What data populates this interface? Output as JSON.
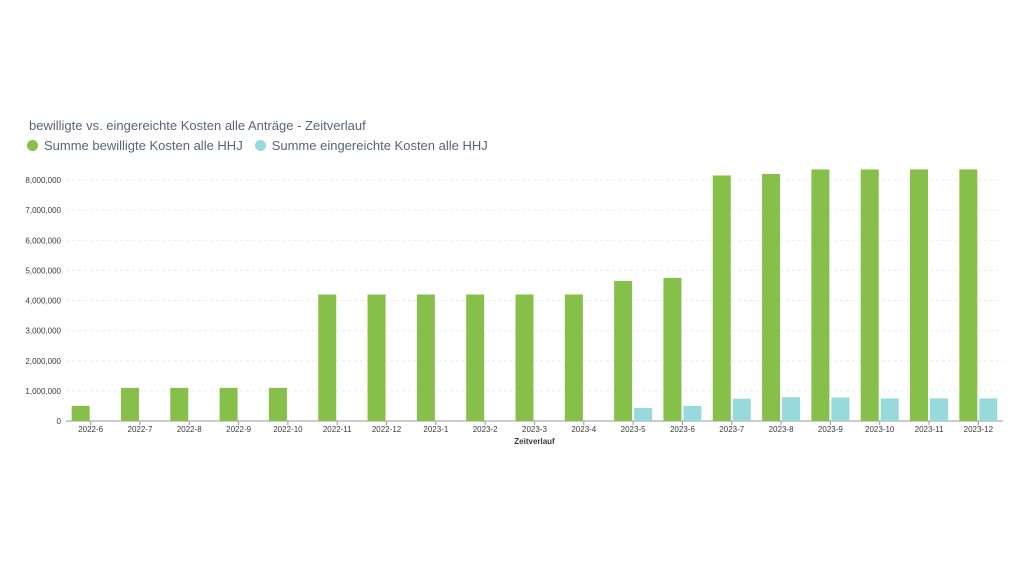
{
  "colors": {
    "series_approved": "#86bf4a",
    "series_submitted": "#98d9dc",
    "grid": "#ececec",
    "axis": "#999999"
  },
  "chart_data": {
    "type": "bar",
    "title": "bewilligte vs. eingereichte Kosten alle Anträge - Zeitverlauf",
    "xlabel": "Zeitverlauf",
    "ylabel": "",
    "ylim": [
      0,
      8000000
    ],
    "yticks": [
      "0",
      "1,000,000",
      "2,000,000",
      "3,000,000",
      "4,000,000",
      "5,000,000",
      "6,000,000",
      "7,000,000",
      "8,000,000"
    ],
    "ytick_values": [
      0,
      1000000,
      2000000,
      3000000,
      4000000,
      5000000,
      6000000,
      7000000,
      8000000
    ],
    "legend_position": "top-left",
    "categories": [
      "2022-6",
      "2022-7",
      "2022-8",
      "2022-9",
      "2022-10",
      "2022-11",
      "2022-12",
      "2023-1",
      "2023-2",
      "2023-3",
      "2023-4",
      "2023-5",
      "2023-6",
      "2023-7",
      "2023-8",
      "2023-9",
      "2023-10",
      "2023-11",
      "2023-12"
    ],
    "series": [
      {
        "name": "Summe bewilligte Kosten alle HHJ",
        "values": [
          500000,
          1100000,
          1100000,
          1100000,
          1100000,
          4200000,
          4200000,
          4200000,
          4200000,
          4200000,
          4200000,
          4650000,
          4750000,
          8150000,
          8200000,
          8350000,
          8350000,
          8350000,
          8350000
        ]
      },
      {
        "name": "Summe eingereichte Kosten alle HHJ",
        "values": [
          0,
          0,
          0,
          0,
          0,
          0,
          0,
          0,
          0,
          0,
          0,
          430000,
          500000,
          740000,
          790000,
          780000,
          750000,
          750000,
          750000
        ]
      }
    ]
  }
}
